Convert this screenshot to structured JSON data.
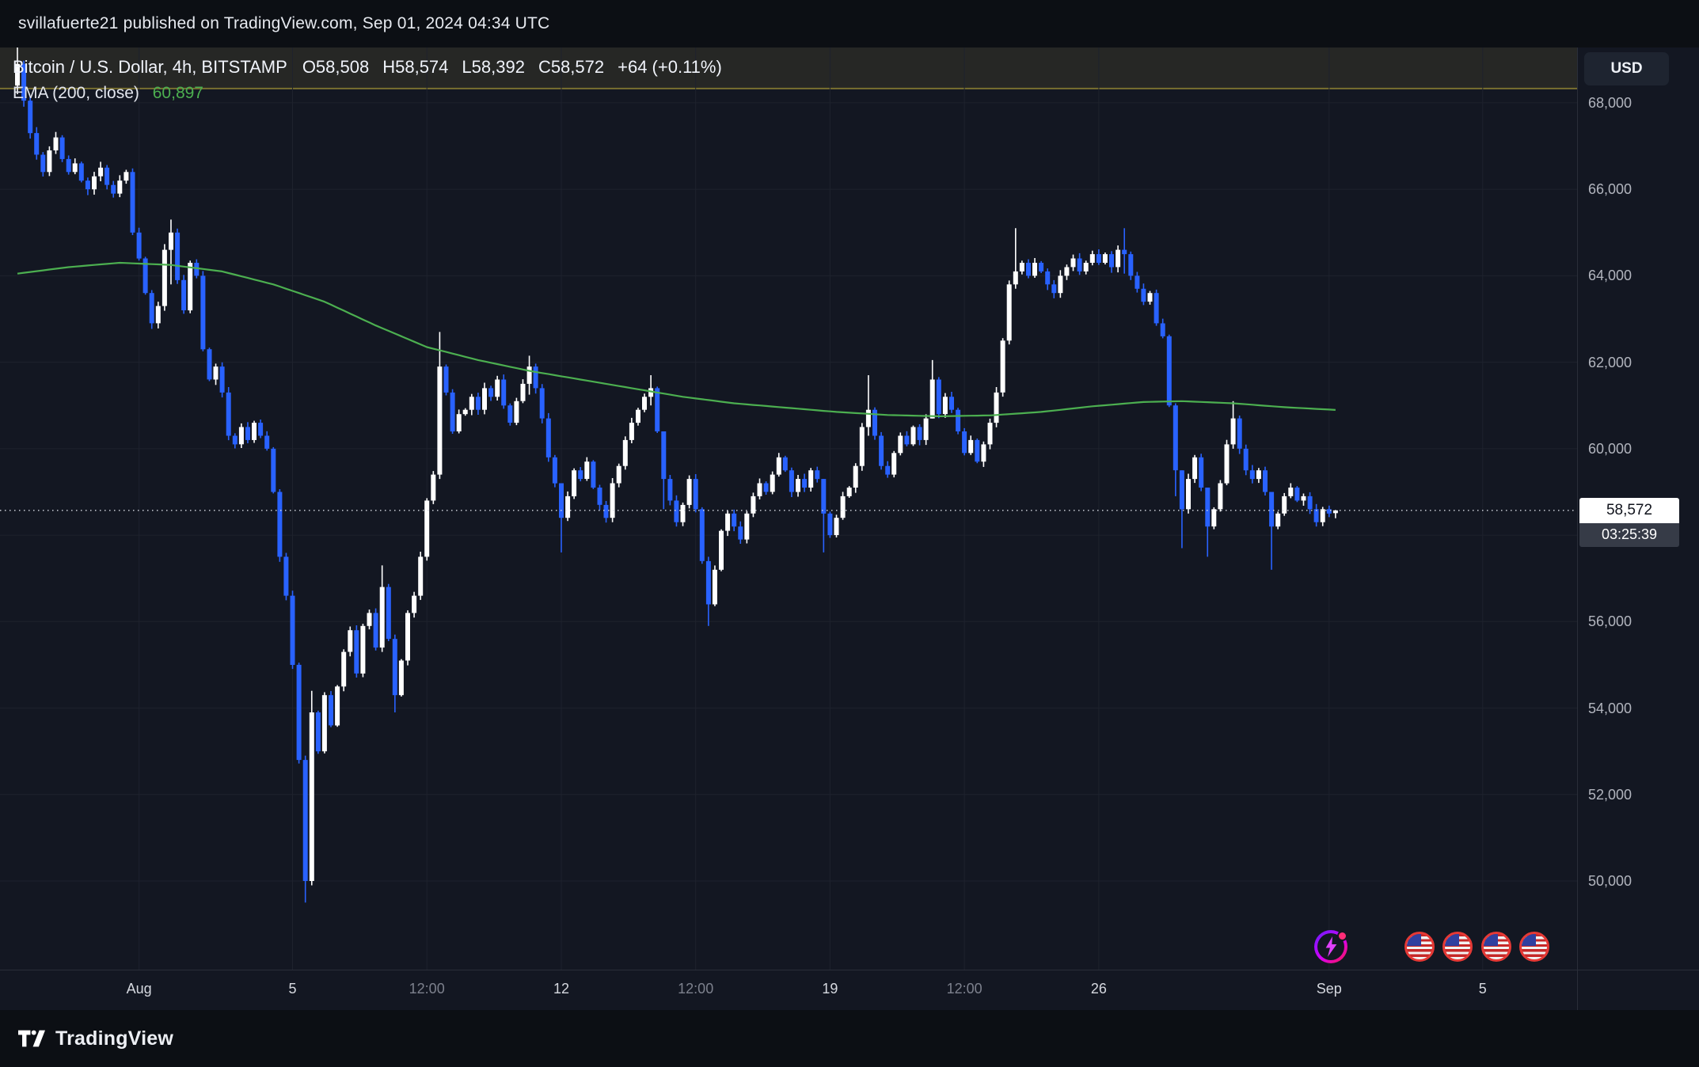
{
  "publish_bar": {
    "text": "svillafuerte21 published on TradingView.com, Sep 01, 2024 04:34 UTC"
  },
  "legend": {
    "symbol": "Bitcoin / U.S. Dollar, 4h, BITSTAMP",
    "open": "O58,508",
    "high": "H58,574",
    "low": "L58,392",
    "close": "C58,572",
    "change": "+64 (+0.11%)",
    "ema_label": "EMA (200, close)",
    "ema_value": "60,897"
  },
  "price_axis": {
    "currency": "USD",
    "labels": [
      {
        "text": "68,000",
        "price": 68000
      },
      {
        "text": "66,000",
        "price": 66000
      },
      {
        "text": "64,000",
        "price": 64000
      },
      {
        "text": "62,000",
        "price": 62000
      },
      {
        "text": "60,000",
        "price": 60000
      },
      {
        "text": "56,000",
        "price": 56000
      },
      {
        "text": "54,000",
        "price": 54000
      },
      {
        "text": "52,000",
        "price": 52000
      },
      {
        "text": "50,000",
        "price": 50000
      }
    ],
    "price_label": "58,572",
    "countdown": "03:25:39"
  },
  "time_axis": {
    "ticks": [
      {
        "label": "Aug",
        "index": 19,
        "major": true
      },
      {
        "label": "5",
        "index": 43,
        "major": true
      },
      {
        "label": "12:00",
        "index": 64,
        "major": false
      },
      {
        "label": "12",
        "index": 85,
        "major": true
      },
      {
        "label": "12:00",
        "index": 106,
        "major": false
      },
      {
        "label": "19",
        "index": 127,
        "major": true
      },
      {
        "label": "12:00",
        "index": 148,
        "major": false
      },
      {
        "label": "26",
        "index": 169,
        "major": true
      },
      {
        "label": "Sep",
        "index": 205,
        "major": true
      },
      {
        "label": "5",
        "index": 229,
        "major": true
      }
    ]
  },
  "footer": {
    "brand": "TradingView"
  },
  "icons": {
    "idea": "lightning-icon",
    "flags_count": 4
  },
  "colors": {
    "background": "#131722",
    "frame": "#0c0f14",
    "grid": "#1e222d",
    "up": "#ffffff",
    "down": "#2962ff",
    "ema": "#4caf50",
    "band_fill": "rgba(210,188,64,0.10)",
    "band_edge": "rgba(199,178,58,0.55)",
    "current_price_line": "#d9dce4"
  },
  "chart_data": {
    "type": "candlestick",
    "title": "Bitcoin / U.S. Dollar",
    "exchange": "BITSTAMP",
    "interval": "4h",
    "x_range": "Jul 28 2024 20:00 UTC to Sep 01 2024 04:00 UTC, one candle per 4h",
    "ylim": [
      47950,
      69280
    ],
    "grid_prices": [
      68000,
      66000,
      64000,
      62000,
      60000,
      58000,
      56000,
      54000,
      52000,
      50000
    ],
    "current_price": 58572,
    "highlight_band": {
      "top_price": 69280,
      "bottom_price": 68330
    },
    "first_open": 68400,
    "open_equals_previous_close": true,
    "closes": [
      68900,
      68050,
      67300,
      66800,
      66400,
      66900,
      67200,
      66700,
      66400,
      66600,
      66200,
      66000,
      66300,
      66500,
      66100,
      65900,
      66200,
      66400,
      65000,
      64400,
      63600,
      62900,
      63300,
      64600,
      65000,
      63900,
      63200,
      64300,
      64000,
      62300,
      61600,
      61900,
      61300,
      60300,
      60100,
      60500,
      60200,
      60600,
      60300,
      60000,
      59000,
      57500,
      56600,
      55000,
      52800,
      50000,
      53900,
      53000,
      54300,
      53600,
      54500,
      55300,
      55800,
      54800,
      55900,
      56200,
      55400,
      56800,
      55600,
      54300,
      55100,
      56200,
      56600,
      57500,
      58800,
      59400,
      61900,
      61300,
      60400,
      60800,
      60900,
      61200,
      60900,
      61400,
      61200,
      61600,
      61000,
      60600,
      61100,
      61500,
      61900,
      61400,
      60700,
      59800,
      59200,
      58400,
      58900,
      59500,
      59300,
      59700,
      59100,
      58700,
      58400,
      59200,
      59600,
      60200,
      60600,
      60900,
      61200,
      61400,
      60400,
      59300,
      58800,
      58300,
      58700,
      59300,
      58600,
      57400,
      56400,
      57200,
      58100,
      58500,
      58200,
      57900,
      58500,
      58900,
      59200,
      59000,
      59400,
      59800,
      59500,
      59000,
      59300,
      59100,
      59500,
      59300,
      58500,
      58000,
      58400,
      58900,
      59100,
      59600,
      60500,
      60900,
      60300,
      59600,
      59400,
      59900,
      60300,
      60100,
      60500,
      60200,
      60700,
      61600,
      60800,
      61200,
      60900,
      60400,
      59900,
      60200,
      59700,
      60100,
      60600,
      61300,
      62500,
      63800,
      64100,
      64300,
      64000,
      64300,
      64100,
      63800,
      63600,
      64000,
      64200,
      64400,
      64100,
      64300,
      64500,
      64300,
      64500,
      64200,
      64600,
      64500,
      64000,
      63700,
      63400,
      63600,
      62900,
      62600,
      61000,
      59500,
      58600,
      59300,
      59800,
      59100,
      58200,
      58600,
      59200,
      60100,
      60700,
      60000,
      59500,
      59300,
      59500,
      59000,
      58200,
      58500,
      58900,
      59100,
      58800,
      58900,
      58600,
      58300,
      58600,
      58500,
      58572
    ],
    "wick_overrides": {
      "0": [
        69300,
        68200
      ],
      "24": [
        65300,
        63800
      ],
      "45": [
        52900,
        49500
      ],
      "46": [
        54400,
        49900
      ],
      "57": [
        57300,
        55300
      ],
      "59": [
        55700,
        53900
      ],
      "66": [
        62700,
        59300
      ],
      "80": [
        62150,
        61250
      ],
      "85": [
        58700,
        57600
      ],
      "99": [
        61700,
        61000
      ],
      "101": [
        60400,
        58600
      ],
      "108": [
        57500,
        55900
      ],
      "126": [
        59300,
        57600
      ],
      "133": [
        61700,
        60300
      ],
      "143": [
        62050,
        60700
      ],
      "156": [
        65100,
        63700
      ],
      "173": [
        65100,
        64050
      ],
      "181": [
        61050,
        58900
      ],
      "182": [
        59500,
        57700
      ],
      "186": [
        59100,
        57500
      ],
      "190": [
        61100,
        60000
      ],
      "196": [
        59000,
        57200
      ]
    },
    "last_candle": {
      "open": 58508,
      "high": 58574,
      "low": 58392,
      "close": 58572
    },
    "ema": {
      "period": 200,
      "source": "close",
      "current": 60897,
      "color": "#4caf50",
      "points": [
        [
          0,
          64050
        ],
        [
          8,
          64200
        ],
        [
          16,
          64300
        ],
        [
          24,
          64250
        ],
        [
          32,
          64100
        ],
        [
          40,
          63800
        ],
        [
          48,
          63400
        ],
        [
          56,
          62850
        ],
        [
          64,
          62350
        ],
        [
          72,
          62050
        ],
        [
          80,
          61800
        ],
        [
          88,
          61600
        ],
        [
          96,
          61400
        ],
        [
          104,
          61200
        ],
        [
          112,
          61050
        ],
        [
          120,
          60950
        ],
        [
          128,
          60850
        ],
        [
          136,
          60780
        ],
        [
          144,
          60750
        ],
        [
          152,
          60770
        ],
        [
          160,
          60850
        ],
        [
          168,
          60980
        ],
        [
          176,
          61080
        ],
        [
          182,
          61100
        ],
        [
          190,
          61050
        ],
        [
          198,
          60960
        ],
        [
          206,
          60897
        ]
      ]
    }
  }
}
